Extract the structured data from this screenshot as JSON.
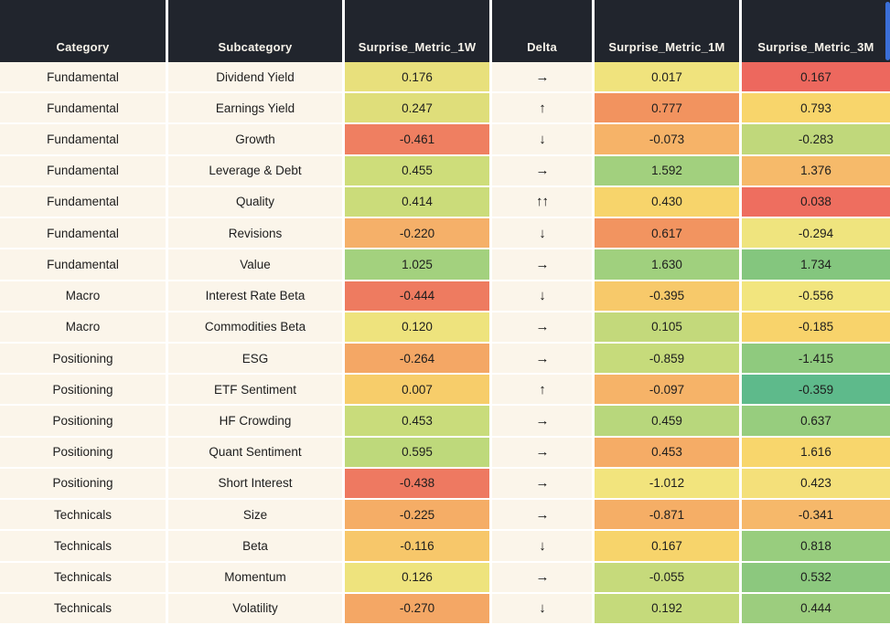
{
  "chart_data": {
    "type": "table",
    "title": "",
    "columns": [
      "Category",
      "Subcategory",
      "Surprise_Metric_1W",
      "Delta",
      "Surprise_Metric_1M",
      "Surprise_Metric_3M"
    ],
    "heatmap_columns": [
      "Surprise_Metric_1W",
      "Surprise_Metric_1M",
      "Surprise_Metric_3M"
    ],
    "rows": [
      {
        "category": "Fundamental",
        "subcategory": "Dividend Yield",
        "surprise_1w": "0.176",
        "delta": "→",
        "surprise_1m": "0.017",
        "surprise_3m": "0.167",
        "colors": {
          "w1": "#e8e07c",
          "m1": "#f0e37d",
          "m3": "#ed685e"
        }
      },
      {
        "category": "Fundamental",
        "subcategory": "Earnings Yield",
        "surprise_1w": "0.247",
        "delta": "↑",
        "surprise_1m": "0.777",
        "surprise_3m": "0.793",
        "colors": {
          "w1": "#dfde7a",
          "m1": "#f2935f",
          "m3": "#f8d56b"
        }
      },
      {
        "category": "Fundamental",
        "subcategory": "Growth",
        "surprise_1w": "-0.461",
        "delta": "↓",
        "surprise_1m": "-0.073",
        "surprise_3m": "-0.283",
        "colors": {
          "w1": "#ef7f61",
          "m1": "#f6b368",
          "m3": "#c0d87b"
        }
      },
      {
        "category": "Fundamental",
        "subcategory": "Leverage & Debt",
        "surprise_1w": "0.455",
        "delta": "→",
        "surprise_1m": "1.592",
        "surprise_3m": "1.376",
        "colors": {
          "w1": "#cedd7a",
          "m1": "#a2d07e",
          "m3": "#f6ba6a"
        }
      },
      {
        "category": "Fundamental",
        "subcategory": "Quality",
        "surprise_1w": "0.414",
        "delta": "↑↑",
        "surprise_1m": "0.430",
        "surprise_3m": "0.038",
        "colors": {
          "w1": "#cbdc7a",
          "m1": "#f7d46b",
          "m3": "#ee6e5f"
        }
      },
      {
        "category": "Fundamental",
        "subcategory": "Revisions",
        "surprise_1w": "-0.220",
        "delta": "↓",
        "surprise_1m": "0.617",
        "surprise_3m": "-0.294",
        "colors": {
          "w1": "#f5b069",
          "m1": "#f29460",
          "m3": "#efe47e"
        }
      },
      {
        "category": "Fundamental",
        "subcategory": "Value",
        "surprise_1w": "1.025",
        "delta": "→",
        "surprise_1m": "1.630",
        "surprise_3m": "1.734",
        "colors": {
          "w1": "#a3d17e",
          "m1": "#a0d07e",
          "m3": "#84c67e"
        }
      },
      {
        "category": "Macro",
        "subcategory": "Interest Rate Beta",
        "surprise_1w": "-0.444",
        "delta": "↓",
        "surprise_1m": "-0.395",
        "surprise_3m": "-0.556",
        "colors": {
          "w1": "#ee7b60",
          "m1": "#f7c96a",
          "m3": "#f2e57e"
        }
      },
      {
        "category": "Macro",
        "subcategory": "Commodities Beta",
        "surprise_1w": "0.120",
        "delta": "→",
        "surprise_1m": "0.105",
        "surprise_3m": "-0.185",
        "colors": {
          "w1": "#eee37d",
          "m1": "#c3d97b",
          "m3": "#f8d36b"
        }
      },
      {
        "category": "Positioning",
        "subcategory": "ESG",
        "surprise_1w": "-0.264",
        "delta": "→",
        "surprise_1m": "-0.859",
        "surprise_3m": "-1.415",
        "colors": {
          "w1": "#f4a765",
          "m1": "#c6db7b",
          "m3": "#8fca7e"
        }
      },
      {
        "category": "Positioning",
        "subcategory": "ETF Sentiment",
        "surprise_1w": "0.007",
        "delta": "↑",
        "surprise_1m": "-0.097",
        "surprise_3m": "-0.359",
        "colors": {
          "w1": "#f7cd6a",
          "m1": "#f6b368",
          "m3": "#5eba8b"
        }
      },
      {
        "category": "Positioning",
        "subcategory": "HF Crowding",
        "surprise_1w": "0.453",
        "delta": "→",
        "surprise_1m": "0.459",
        "surprise_3m": "0.637",
        "colors": {
          "w1": "#c9dc7b",
          "m1": "#b8d77c",
          "m3": "#97cd7e"
        }
      },
      {
        "category": "Positioning",
        "subcategory": "Quant Sentiment",
        "surprise_1w": "0.595",
        "delta": "→",
        "surprise_1m": "0.453",
        "surprise_3m": "1.616",
        "colors": {
          "w1": "#bed97b",
          "m1": "#f5ac66",
          "m3": "#f8d66c"
        }
      },
      {
        "category": "Positioning",
        "subcategory": "Short Interest",
        "surprise_1w": "-0.438",
        "delta": "→",
        "surprise_1m": "-1.012",
        "surprise_3m": "0.423",
        "colors": {
          "w1": "#ee7961",
          "m1": "#f2e47d",
          "m3": "#f4e07a"
        }
      },
      {
        "category": "Technicals",
        "subcategory": "Size",
        "surprise_1w": "-0.225",
        "delta": "→",
        "surprise_1m": "-0.871",
        "surprise_3m": "-0.341",
        "colors": {
          "w1": "#f5ad66",
          "m1": "#f5ae66",
          "m3": "#f6b86a"
        }
      },
      {
        "category": "Technicals",
        "subcategory": "Beta",
        "surprise_1w": "-0.116",
        "delta": "↓",
        "surprise_1m": "0.167",
        "surprise_3m": "0.818",
        "colors": {
          "w1": "#f7c76a",
          "m1": "#f7d46b",
          "m3": "#98cd7e"
        }
      },
      {
        "category": "Technicals",
        "subcategory": "Momentum",
        "surprise_1w": "0.126",
        "delta": "→",
        "surprise_1m": "-0.055",
        "surprise_3m": "0.532",
        "colors": {
          "w1": "#eee37d",
          "m1": "#c6da7b",
          "m3": "#8cc87e"
        }
      },
      {
        "category": "Technicals",
        "subcategory": "Volatility",
        "surprise_1w": "-0.270",
        "delta": "↓",
        "surprise_1m": "0.192",
        "surprise_3m": "0.444",
        "colors": {
          "w1": "#f4a765",
          "m1": "#c5da7b",
          "m3": "#9ccd7e"
        }
      }
    ],
    "layout_hints": {
      "header_bg": "#21252d",
      "header_text_color": "#f7f3ea",
      "row_bg": "#fbf5ea",
      "separator_color": "#ffffff",
      "scrollbar_color": "#3b6fd8",
      "colormap": "red-yellow-green heatmap per cell"
    }
  },
  "header": {
    "col_category": "Category",
    "col_subcategory": "Subcategory",
    "col_1w": "Surprise_Metric_1W",
    "col_delta": "Delta",
    "col_1m": "Surprise_Metric_1M",
    "col_3m": "Surprise_Metric_3M"
  }
}
